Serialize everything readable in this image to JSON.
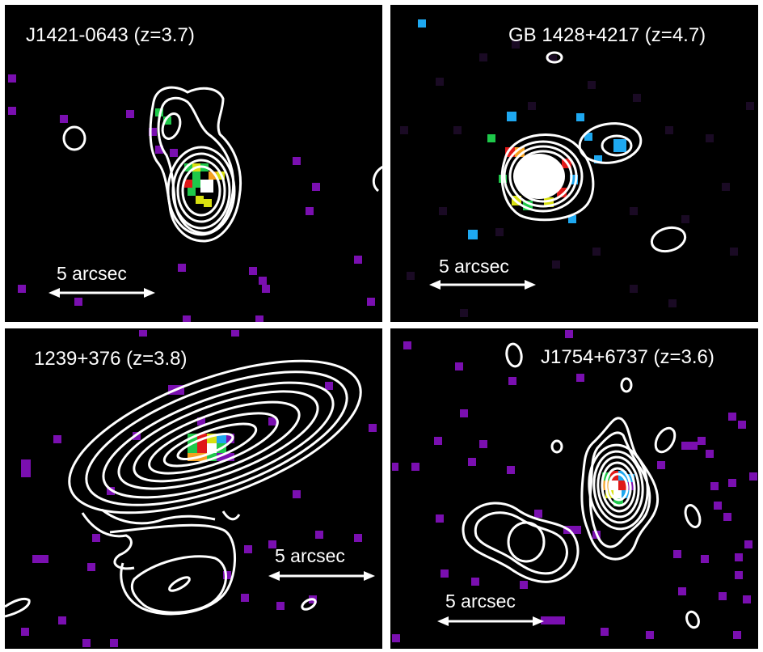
{
  "panels": [
    {
      "title": "J1421-0643 (z=3.7)",
      "scale_label": "5 arcsec"
    },
    {
      "title": "GB 1428+4217 (z=4.7)",
      "scale_label": "5 arcsec"
    },
    {
      "title": "1239+376 (z=3.8)",
      "scale_label": "5 arcsec"
    },
    {
      "title": "J1754+6737 (z=3.6)",
      "scale_label": "5 arcsec"
    }
  ],
  "colors": {
    "background": "#000000",
    "contours": "#ffffff",
    "faint_pixel": "#7a0fb0",
    "blue_pixel": "#1ea8f0",
    "green_pixel": "#1ec84a",
    "yellow_pixel": "#d8e010",
    "orange_pixel": "#f5a020",
    "red_pixel": "#e01818"
  }
}
